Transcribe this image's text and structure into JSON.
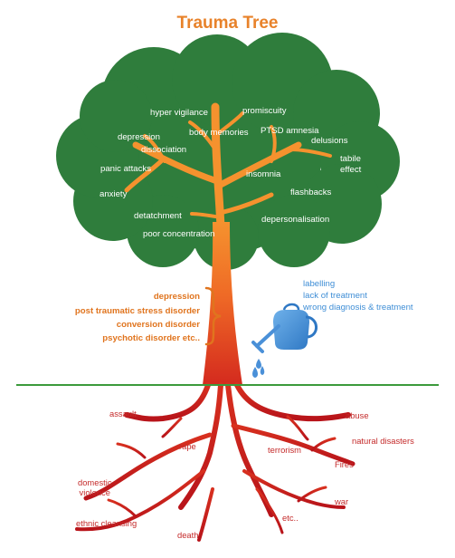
{
  "title": "Trauma Tree",
  "colors": {
    "title": "#e8822a",
    "canopy": "#2f7d3c",
    "trunk_top": "#f08a2c",
    "trunk_bottom": "#d8241c",
    "ground": "#3c9a3c",
    "disorders": "#e0741e",
    "factors": "#3f8ed6",
    "roots_text": "#c42a2a",
    "watering_can": "#4a90d8"
  },
  "icons": {
    "watering_can": "watering-can-icon",
    "brace": "curly-brace"
  },
  "canopy_labels": [
    "hyper vigilance",
    "promiscuity",
    "depression",
    "body memories",
    "PTSD amnesia",
    "dissociation",
    "delusions",
    "tabile\neffect",
    "panic attacks",
    "insomnia",
    "anxiety",
    "flashbacks",
    "detatchment",
    "depersonalisation",
    "poor concentration"
  ],
  "disorders": [
    "depression",
    "post traumatic stress disorder",
    "conversion disorder",
    "psychotic disorder etc.."
  ],
  "factors": [
    "labelling",
    "lack of treatment",
    "wrong diagnosis & treatment"
  ],
  "root_labels": [
    "assault",
    "abuse",
    "natural disasters",
    "rape",
    "terrorism",
    "Fires",
    "domestic\nviolence",
    "war",
    "etc..",
    "ethnic cleansing",
    "death"
  ]
}
